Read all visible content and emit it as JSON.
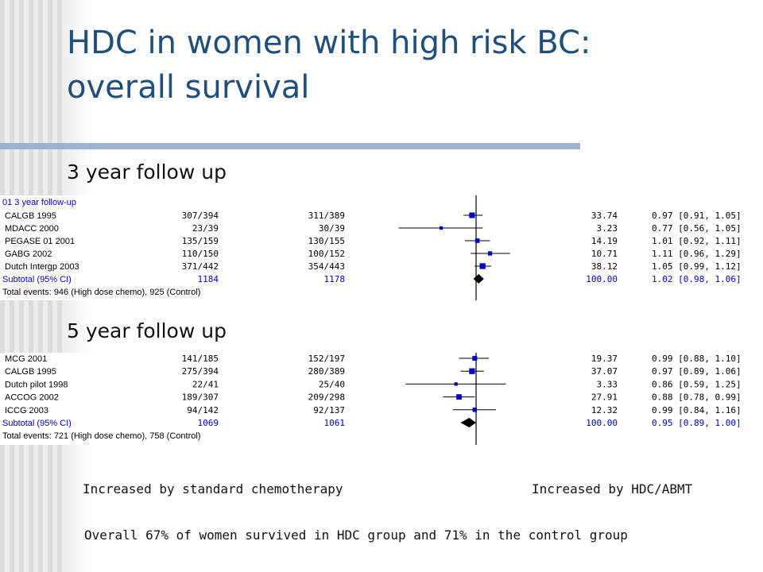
{
  "slide": {
    "title_line1": "HDC in women with high risk BC:",
    "title_line2": "overall survival",
    "footer_left": "Increased by standard chemotherapy",
    "footer_right": "Increased by HDC/ABMT",
    "summary": "Overall 67% of women survived in HDC group and 71% in the control group"
  },
  "colors": {
    "title": "#1f4f7a",
    "rule": "#9eb4cd",
    "marker": "#0000cc",
    "blue_text": "#0000cc"
  },
  "chart_data": [
    {
      "type": "forest",
      "heading": "3 year follow up",
      "group_label": "01 3 year follow-up",
      "rows": [
        {
          "study": "CALGB 1995",
          "hdc": "307/394",
          "control": "311/389",
          "weight": "33.74",
          "ci_text": "0.97 [0.91, 1.05]",
          "or": 0.97,
          "lo": 0.91,
          "hi": 1.05
        },
        {
          "study": "MDACC 2000",
          "hdc": "23/39",
          "control": "30/39",
          "weight": "3.23",
          "ci_text": "0.77 [0.56, 1.05]",
          "or": 0.77,
          "lo": 0.56,
          "hi": 1.05
        },
        {
          "study": "PEGASE 01 2001",
          "hdc": "135/159",
          "control": "130/155",
          "weight": "14.19",
          "ci_text": "1.01 [0.92, 1.11]",
          "or": 1.01,
          "lo": 0.92,
          "hi": 1.11
        },
        {
          "study": "GABG 2002",
          "hdc": "110/150",
          "control": "100/152",
          "weight": "10.71",
          "ci_text": "1.11 [0.96, 1.29]",
          "or": 1.11,
          "lo": 0.96,
          "hi": 1.29
        },
        {
          "study": "Dutch Intergp 2003",
          "hdc": "371/442",
          "control": "354/443",
          "weight": "38.12",
          "ci_text": "1.05 [0.99, 1.12]",
          "or": 1.05,
          "lo": 0.99,
          "hi": 1.12
        }
      ],
      "subtotal": {
        "label": "Subtotal (95% CI)",
        "hdc": "1184",
        "control": "1178",
        "weight": "100.00",
        "ci_text": "1.02 [0.98, 1.06]",
        "or": 1.02,
        "lo": 0.98,
        "hi": 1.06
      },
      "total_events": "Total events: 946 (High dose chemo), 925 (Control)"
    },
    {
      "type": "forest",
      "heading": "5 year follow up",
      "group_label": "",
      "rows": [
        {
          "study": "MCG 2001",
          "hdc": "141/185",
          "control": "152/197",
          "weight": "19.37",
          "ci_text": "0.99 [0.88, 1.10]",
          "or": 0.99,
          "lo": 0.88,
          "hi": 1.1
        },
        {
          "study": "CALGB 1995",
          "hdc": "275/394",
          "control": "280/389",
          "weight": "37.07",
          "ci_text": "0.97 [0.89, 1.06]",
          "or": 0.97,
          "lo": 0.89,
          "hi": 1.06
        },
        {
          "study": "Dutch pilot 1998",
          "hdc": "22/41",
          "control": "25/40",
          "weight": "3.33",
          "ci_text": "0.86 [0.59, 1.25]",
          "or": 0.86,
          "lo": 0.59,
          "hi": 1.25
        },
        {
          "study": "ACCOG 2002",
          "hdc": "189/307",
          "control": "209/298",
          "weight": "27.91",
          "ci_text": "0.88 [0.78, 0.99]",
          "or": 0.88,
          "lo": 0.78,
          "hi": 0.99
        },
        {
          "study": "ICCG 2003",
          "hdc": "94/142",
          "control": "92/137",
          "weight": "12.32",
          "ci_text": "0.99 [0.84, 1.16]",
          "or": 0.99,
          "lo": 0.84,
          "hi": 1.16
        }
      ],
      "subtotal": {
        "label": "Subtotal (95% CI)",
        "hdc": "1069",
        "control": "1061",
        "weight": "100.00",
        "ci_text": "0.95 [0.89, 1.00]",
        "or": 0.95,
        "lo": 0.89,
        "hi": 1.0
      },
      "total_events": "Total events: 721 (High dose chemo), 758 (Control)"
    }
  ]
}
